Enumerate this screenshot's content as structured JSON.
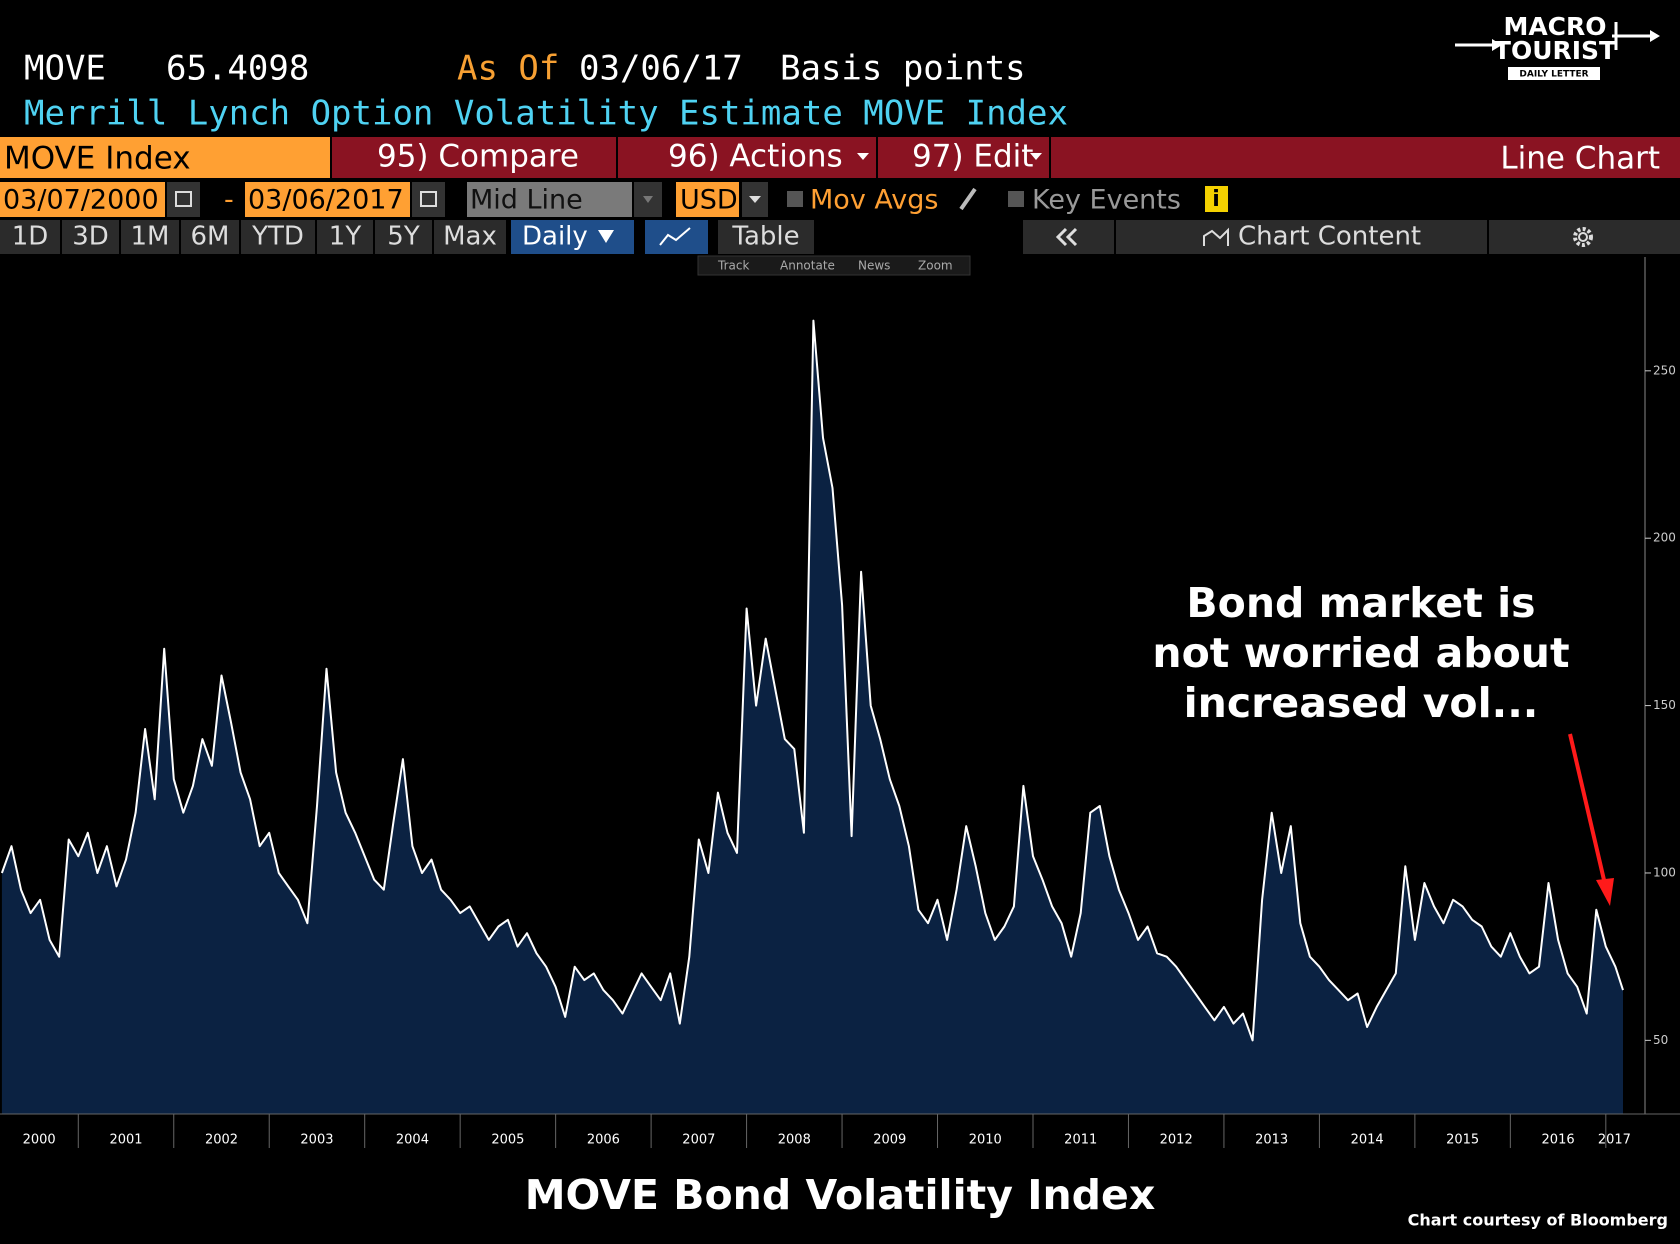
{
  "header": {
    "ticker": "MOVE",
    "last": "65.4098",
    "as_of_label": "As Of",
    "as_of_date": "03/06/17",
    "units": "Basis points",
    "description": "Merrill Lynch Option Volatility Estimate MOVE Index"
  },
  "logo": {
    "line1": "MACRO",
    "line2": "TOURIST",
    "tagline": "DAILY LETTER"
  },
  "menu": {
    "security": "MOVE Index",
    "compare": "95) Compare",
    "actions": "96) Actions",
    "edit": "97) Edit",
    "chart_type": "Line Chart"
  },
  "controls": {
    "start_date": "03/07/2000",
    "separator": "-",
    "end_date": "03/06/2017",
    "price_type": "Mid Line",
    "currency": "USD",
    "mov_avgs": "Mov Avgs",
    "key_events": "Key Events",
    "info": "i"
  },
  "periods": [
    "1D",
    "3D",
    "1M",
    "6M",
    "YTD",
    "1Y",
    "5Y",
    "Max"
  ],
  "frequency": "Daily",
  "table": "Table",
  "chart_content": "Chart Content",
  "tools": [
    "Track",
    "Annotate",
    "News",
    "Zoom"
  ],
  "chart_data": {
    "type": "area",
    "title": "MOVE Bond Volatility Index",
    "source": "Chart courtesy of Bloomberg",
    "annotation": [
      "Bond market is",
      "not worried about",
      "increased vol..."
    ],
    "line_color": "#ffffff",
    "fill_color": "#0b2242",
    "arrow_color": "#ff1a1a",
    "y_axis_side": "right",
    "x": [
      2000.2,
      2000.3,
      2000.4,
      2000.5,
      2000.6,
      2000.7,
      2000.8,
      2000.9,
      2001.0,
      2001.1,
      2001.2,
      2001.3,
      2001.4,
      2001.5,
      2001.6,
      2001.7,
      2001.8,
      2001.9,
      2002.0,
      2002.1,
      2002.2,
      2002.3,
      2002.4,
      2002.5,
      2002.6,
      2002.7,
      2002.8,
      2002.9,
      2003.0,
      2003.1,
      2003.2,
      2003.3,
      2003.4,
      2003.5,
      2003.6,
      2003.7,
      2003.8,
      2003.9,
      2004.0,
      2004.1,
      2004.2,
      2004.3,
      2004.4,
      2004.5,
      2004.6,
      2004.7,
      2004.8,
      2004.9,
      2005.0,
      2005.1,
      2005.2,
      2005.3,
      2005.4,
      2005.5,
      2005.6,
      2005.7,
      2005.8,
      2005.9,
      2006.0,
      2006.1,
      2006.2,
      2006.3,
      2006.4,
      2006.5,
      2006.6,
      2006.7,
      2006.8,
      2006.9,
      2007.0,
      2007.1,
      2007.2,
      2007.3,
      2007.4,
      2007.5,
      2007.6,
      2007.7,
      2007.8,
      2007.9,
      2008.0,
      2008.1,
      2008.2,
      2008.3,
      2008.4,
      2008.5,
      2008.6,
      2008.7,
      2008.8,
      2008.9,
      2009.0,
      2009.1,
      2009.2,
      2009.3,
      2009.4,
      2009.5,
      2009.6,
      2009.7,
      2009.8,
      2009.9,
      2010.0,
      2010.1,
      2010.2,
      2010.3,
      2010.4,
      2010.5,
      2010.6,
      2010.7,
      2010.8,
      2010.9,
      2011.0,
      2011.1,
      2011.2,
      2011.3,
      2011.4,
      2011.5,
      2011.6,
      2011.7,
      2011.8,
      2011.9,
      2012.0,
      2012.1,
      2012.2,
      2012.3,
      2012.4,
      2012.5,
      2012.6,
      2012.7,
      2012.8,
      2012.9,
      2013.0,
      2013.1,
      2013.2,
      2013.3,
      2013.4,
      2013.5,
      2013.6,
      2013.7,
      2013.8,
      2013.9,
      2014.0,
      2014.1,
      2014.2,
      2014.3,
      2014.4,
      2014.5,
      2014.6,
      2014.7,
      2014.8,
      2014.9,
      2015.0,
      2015.1,
      2015.2,
      2015.3,
      2015.4,
      2015.5,
      2015.6,
      2015.7,
      2015.8,
      2015.9,
      2016.0,
      2016.1,
      2016.2,
      2016.3,
      2016.4,
      2016.5,
      2016.6,
      2016.7,
      2016.8,
      2016.9,
      2017.0,
      2017.1,
      2017.18
    ],
    "values": [
      100,
      108,
      95,
      88,
      92,
      80,
      75,
      110,
      105,
      112,
      100,
      108,
      96,
      104,
      118,
      143,
      122,
      167,
      128,
      118,
      126,
      140,
      132,
      159,
      145,
      130,
      122,
      108,
      112,
      100,
      96,
      92,
      85,
      120,
      161,
      130,
      118,
      112,
      105,
      98,
      95,
      115,
      134,
      108,
      100,
      104,
      95,
      92,
      88,
      90,
      85,
      80,
      84,
      86,
      78,
      82,
      76,
      72,
      66,
      57,
      72,
      68,
      70,
      65,
      62,
      58,
      64,
      70,
      66,
      62,
      70,
      55,
      75,
      110,
      100,
      124,
      112,
      106,
      179,
      150,
      170,
      155,
      140,
      137,
      112,
      265,
      230,
      215,
      180,
      111,
      190,
      150,
      140,
      128,
      120,
      108,
      89,
      85,
      92,
      80,
      95,
      114,
      102,
      88,
      80,
      84,
      90,
      126,
      105,
      98,
      90,
      85,
      75,
      88,
      118,
      120,
      105,
      95,
      88,
      80,
      84,
      76,
      75,
      72,
      68,
      64,
      60,
      56,
      60,
      55,
      58,
      50,
      92,
      118,
      100,
      114,
      85,
      75,
      72,
      68,
      65,
      62,
      64,
      54,
      60,
      65,
      70,
      102,
      80,
      97,
      90,
      85,
      92,
      90,
      86,
      84,
      78,
      75,
      82,
      75,
      70,
      72,
      97,
      80,
      70,
      66,
      58,
      89,
      78,
      72,
      65
    ],
    "xlim": [
      2000.18,
      2017.18
    ],
    "xticks": [
      2000,
      2001,
      2002,
      2003,
      2004,
      2005,
      2006,
      2007,
      2008,
      2009,
      2010,
      2011,
      2012,
      2013,
      2014,
      2015,
      2016,
      2017
    ],
    "ylim": [
      28,
      284
    ],
    "yticks": [
      50,
      100,
      150,
      200,
      250
    ]
  }
}
